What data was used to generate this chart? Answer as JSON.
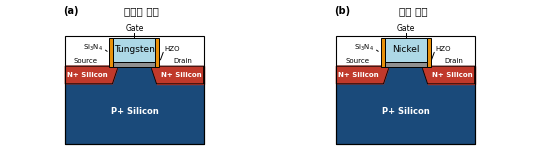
{
  "title_a": "메모리 소자",
  "title_b": "로직 소자",
  "label_a": "(a)",
  "label_b": "(b)",
  "gate_label_a": "Tungsten",
  "gate_label_b": "Nickel",
  "colors": {
    "p_silicon": "#1a4a7a",
    "n_silicon": "#c0392b",
    "gate_metal": "#add8e6",
    "hzo": "#909090",
    "spacer": "#e8900a",
    "background": "#ffffff",
    "border": "#000000"
  },
  "text_color": "#000000"
}
